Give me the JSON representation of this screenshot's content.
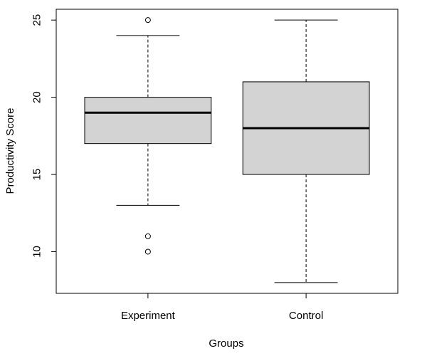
{
  "chart_data": {
    "type": "boxplot",
    "xlabel": "Groups",
    "ylabel": "Productivity Score",
    "ylim": [
      7.3,
      25.7
    ],
    "yticks": [
      10,
      15,
      20,
      25
    ],
    "grid": false,
    "legend": "none",
    "box_fill": "#d3d3d3",
    "series": [
      {
        "name": "Experiment",
        "whisker_low": 13,
        "q1": 17,
        "median": 19,
        "q3": 20,
        "whisker_high": 24,
        "outliers": [
          25,
          11,
          10
        ]
      },
      {
        "name": "Control",
        "whisker_low": 8,
        "q1": 15,
        "median": 18,
        "q3": 21,
        "whisker_high": 25,
        "outliers": []
      }
    ]
  }
}
